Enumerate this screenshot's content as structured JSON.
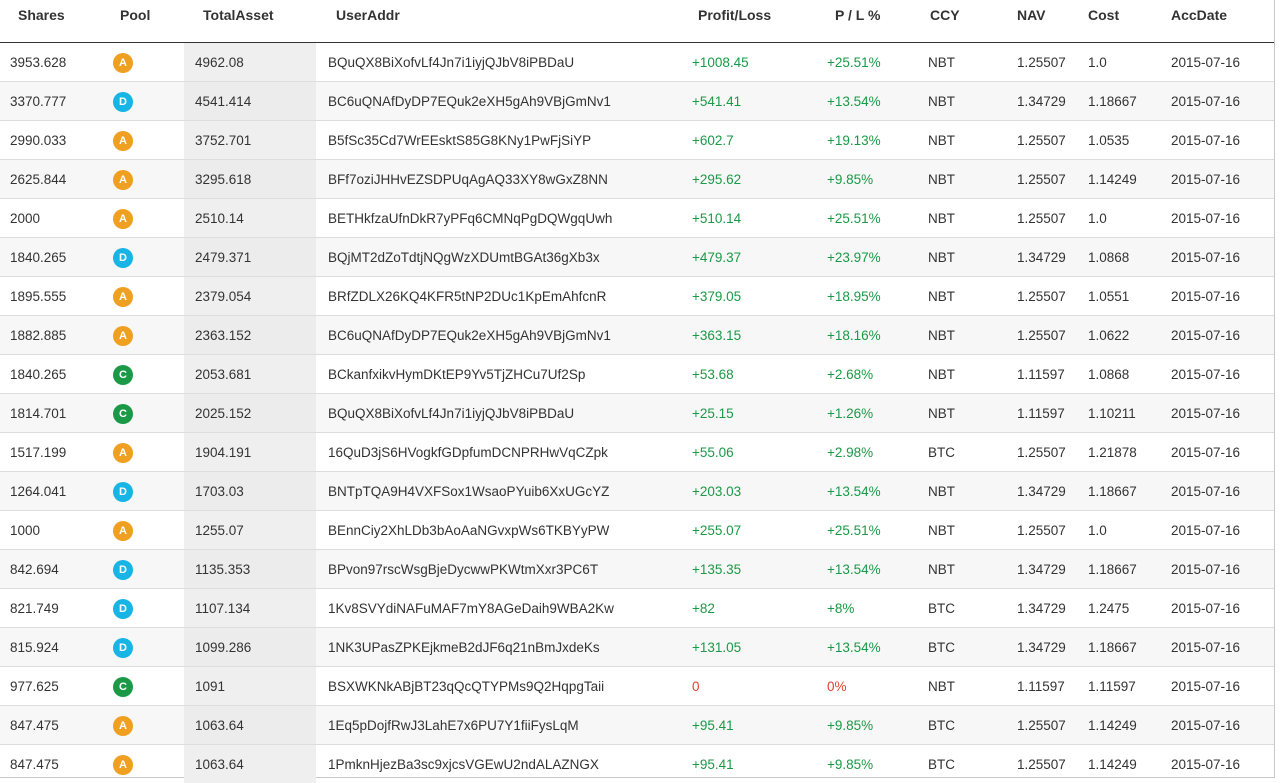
{
  "colors": {
    "pool": {
      "A": "#f0a020",
      "D": "#17b4e6",
      "C": "#1a9a46"
    },
    "positive": "#1a9a46",
    "zero": "#e0432c"
  },
  "table": {
    "headers": [
      "Shares",
      "Pool",
      "TotalAsset",
      "UserAddr",
      "Profit/Loss",
      "P / L %",
      "CCY",
      "NAV",
      "Cost",
      "AccDate"
    ],
    "rows": [
      [
        "3953.628",
        "A",
        "4962.08",
        "BQuQX8BiXofvLf4Jn7i1iyjQJbV8iPBDaU",
        "+1008.45",
        "+25.51%",
        "NBT",
        "1.25507",
        "1.0",
        "2015-07-16"
      ],
      [
        "3370.777",
        "D",
        "4541.414",
        "BC6uQNAfDyDP7EQuk2eXH5gAh9VBjGmNv1",
        "+541.41",
        "+13.54%",
        "NBT",
        "1.34729",
        "1.18667",
        "2015-07-16"
      ],
      [
        "2990.033",
        "A",
        "3752.701",
        "B5fSc35Cd7WrEEsktS85G8KNy1PwFjSiYP",
        "+602.7",
        "+19.13%",
        "NBT",
        "1.25507",
        "1.0535",
        "2015-07-16"
      ],
      [
        "2625.844",
        "A",
        "3295.618",
        "BFf7oziJHHvEZSDPUqAgAQ33XY8wGxZ8NN",
        "+295.62",
        "+9.85%",
        "NBT",
        "1.25507",
        "1.14249",
        "2015-07-16"
      ],
      [
        "2000",
        "A",
        "2510.14",
        "BETHkfzaUfnDkR7yPFq6CMNqPgDQWgqUwh",
        "+510.14",
        "+25.51%",
        "NBT",
        "1.25507",
        "1.0",
        "2015-07-16"
      ],
      [
        "1840.265",
        "D",
        "2479.371",
        "BQjMT2dZoTdtjNQgWzXDUmtBGAt36gXb3x",
        "+479.37",
        "+23.97%",
        "NBT",
        "1.34729",
        "1.0868",
        "2015-07-16"
      ],
      [
        "1895.555",
        "A",
        "2379.054",
        "BRfZDLX26KQ4KFR5tNP2DUc1KpEmAhfcnR",
        "+379.05",
        "+18.95%",
        "NBT",
        "1.25507",
        "1.0551",
        "2015-07-16"
      ],
      [
        "1882.885",
        "A",
        "2363.152",
        "BC6uQNAfDyDP7EQuk2eXH5gAh9VBjGmNv1",
        "+363.15",
        "+18.16%",
        "NBT",
        "1.25507",
        "1.0622",
        "2015-07-16"
      ],
      [
        "1840.265",
        "C",
        "2053.681",
        "BCkanfxikvHymDKtEP9Yv5TjZHCu7Uf2Sp",
        "+53.68",
        "+2.68%",
        "NBT",
        "1.11597",
        "1.0868",
        "2015-07-16"
      ],
      [
        "1814.701",
        "C",
        "2025.152",
        "BQuQX8BiXofvLf4Jn7i1iyjQJbV8iPBDaU",
        "+25.15",
        "+1.26%",
        "NBT",
        "1.11597",
        "1.10211",
        "2015-07-16"
      ],
      [
        "1517.199",
        "A",
        "1904.191",
        "16QuD3jS6HVogkfGDpfumDCNPRHwVqCZpk",
        "+55.06",
        "+2.98%",
        "BTC",
        "1.25507",
        "1.21878",
        "2015-07-16"
      ],
      [
        "1264.041",
        "D",
        "1703.03",
        "BNTpTQA9H4VXFSox1WsaoPYuib6XxUGcYZ",
        "+203.03",
        "+13.54%",
        "NBT",
        "1.34729",
        "1.18667",
        "2015-07-16"
      ],
      [
        "1000",
        "A",
        "1255.07",
        "BEnnCiy2XhLDb3bAoAaNGvxpWs6TKBYyPW",
        "+255.07",
        "+25.51%",
        "NBT",
        "1.25507",
        "1.0",
        "2015-07-16"
      ],
      [
        "842.694",
        "D",
        "1135.353",
        "BPvon97rscWsgBjeDycwwPKWtmXxr3PC6T",
        "+135.35",
        "+13.54%",
        "NBT",
        "1.34729",
        "1.18667",
        "2015-07-16"
      ],
      [
        "821.749",
        "D",
        "1107.134",
        "1Kv8SVYdiNAFuMAF7mY8AGeDaih9WBA2Kw",
        "+82",
        "+8%",
        "BTC",
        "1.34729",
        "1.2475",
        "2015-07-16"
      ],
      [
        "815.924",
        "D",
        "1099.286",
        "1NK3UPasZPKEjkmeB2dJF6q21nBmJxdeKs",
        "+131.05",
        "+13.54%",
        "BTC",
        "1.34729",
        "1.18667",
        "2015-07-16"
      ],
      [
        "977.625",
        "C",
        "1091",
        "BSXWKNkABjBT23qQcQTYPMs9Q2HqpgTaii",
        "0",
        "0%",
        "NBT",
        "1.11597",
        "1.11597",
        "2015-07-16"
      ],
      [
        "847.475",
        "A",
        "1063.64",
        "1Eq5pDojfRwJ3LahE7x6PU7Y1fiiFysLqM",
        "+95.41",
        "+9.85%",
        "BTC",
        "1.25507",
        "1.14249",
        "2015-07-16"
      ],
      [
        "847.475",
        "A",
        "1063.64",
        "1PmknHjezBa3sc9xjcsVGEwU2ndALAZNGX",
        "+95.41",
        "+9.85%",
        "BTC",
        "1.25507",
        "1.14249",
        "2015-07-16"
      ]
    ]
  }
}
